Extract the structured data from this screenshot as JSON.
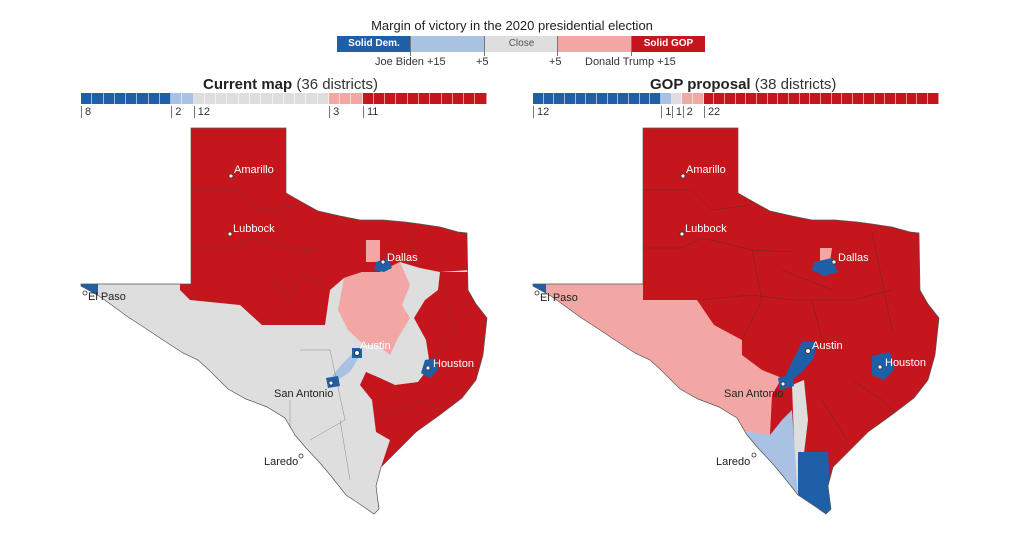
{
  "legend": {
    "title": "Margin of victory in the 2020 presidential election",
    "segments": [
      {
        "label": "Solid Dem.",
        "color": "#1f5fa8"
      },
      {
        "label": "",
        "color": "#a9c1e3"
      },
      {
        "label": "Close",
        "color": "#dedede"
      },
      {
        "label": "",
        "color": "#f2a7a4"
      },
      {
        "label": "Solid GOP",
        "color": "#c4161c"
      }
    ],
    "ticks": [
      "Joe Biden +15",
      "+5",
      "+5",
      "Donald Trump +15"
    ]
  },
  "panels": [
    {
      "title": "Current map",
      "subtitle": "(36 districts)",
      "counts": [
        {
          "value": 8,
          "category": "solid-dem"
        },
        {
          "value": 2,
          "category": "lean-dem"
        },
        {
          "value": 12,
          "category": "close"
        },
        {
          "value": 3,
          "category": "lean-gop"
        },
        {
          "value": 11,
          "category": "solid-gop"
        }
      ],
      "count_labels": [
        "8",
        "2",
        "12",
        "3",
        "11"
      ],
      "cities": [
        "Amarillo",
        "Lubbock",
        "Dallas",
        "El Paso",
        "Austin",
        "Houston",
        "San Antonio",
        "Laredo"
      ]
    },
    {
      "title": "GOP proposal",
      "subtitle": "(38 districts)",
      "counts": [
        {
          "value": 12,
          "category": "solid-dem"
        },
        {
          "value": 1,
          "category": "lean-dem"
        },
        {
          "value": 1,
          "category": "close"
        },
        {
          "value": 2,
          "category": "lean-gop"
        },
        {
          "value": 22,
          "category": "solid-gop"
        }
      ],
      "count_labels": [
        "12",
        "1",
        "1",
        "2",
        "22"
      ],
      "cities": [
        "Amarillo",
        "Lubbock",
        "Dallas",
        "El Paso",
        "Austin",
        "Houston",
        "San Antonio",
        "Laredo"
      ]
    }
  ]
}
